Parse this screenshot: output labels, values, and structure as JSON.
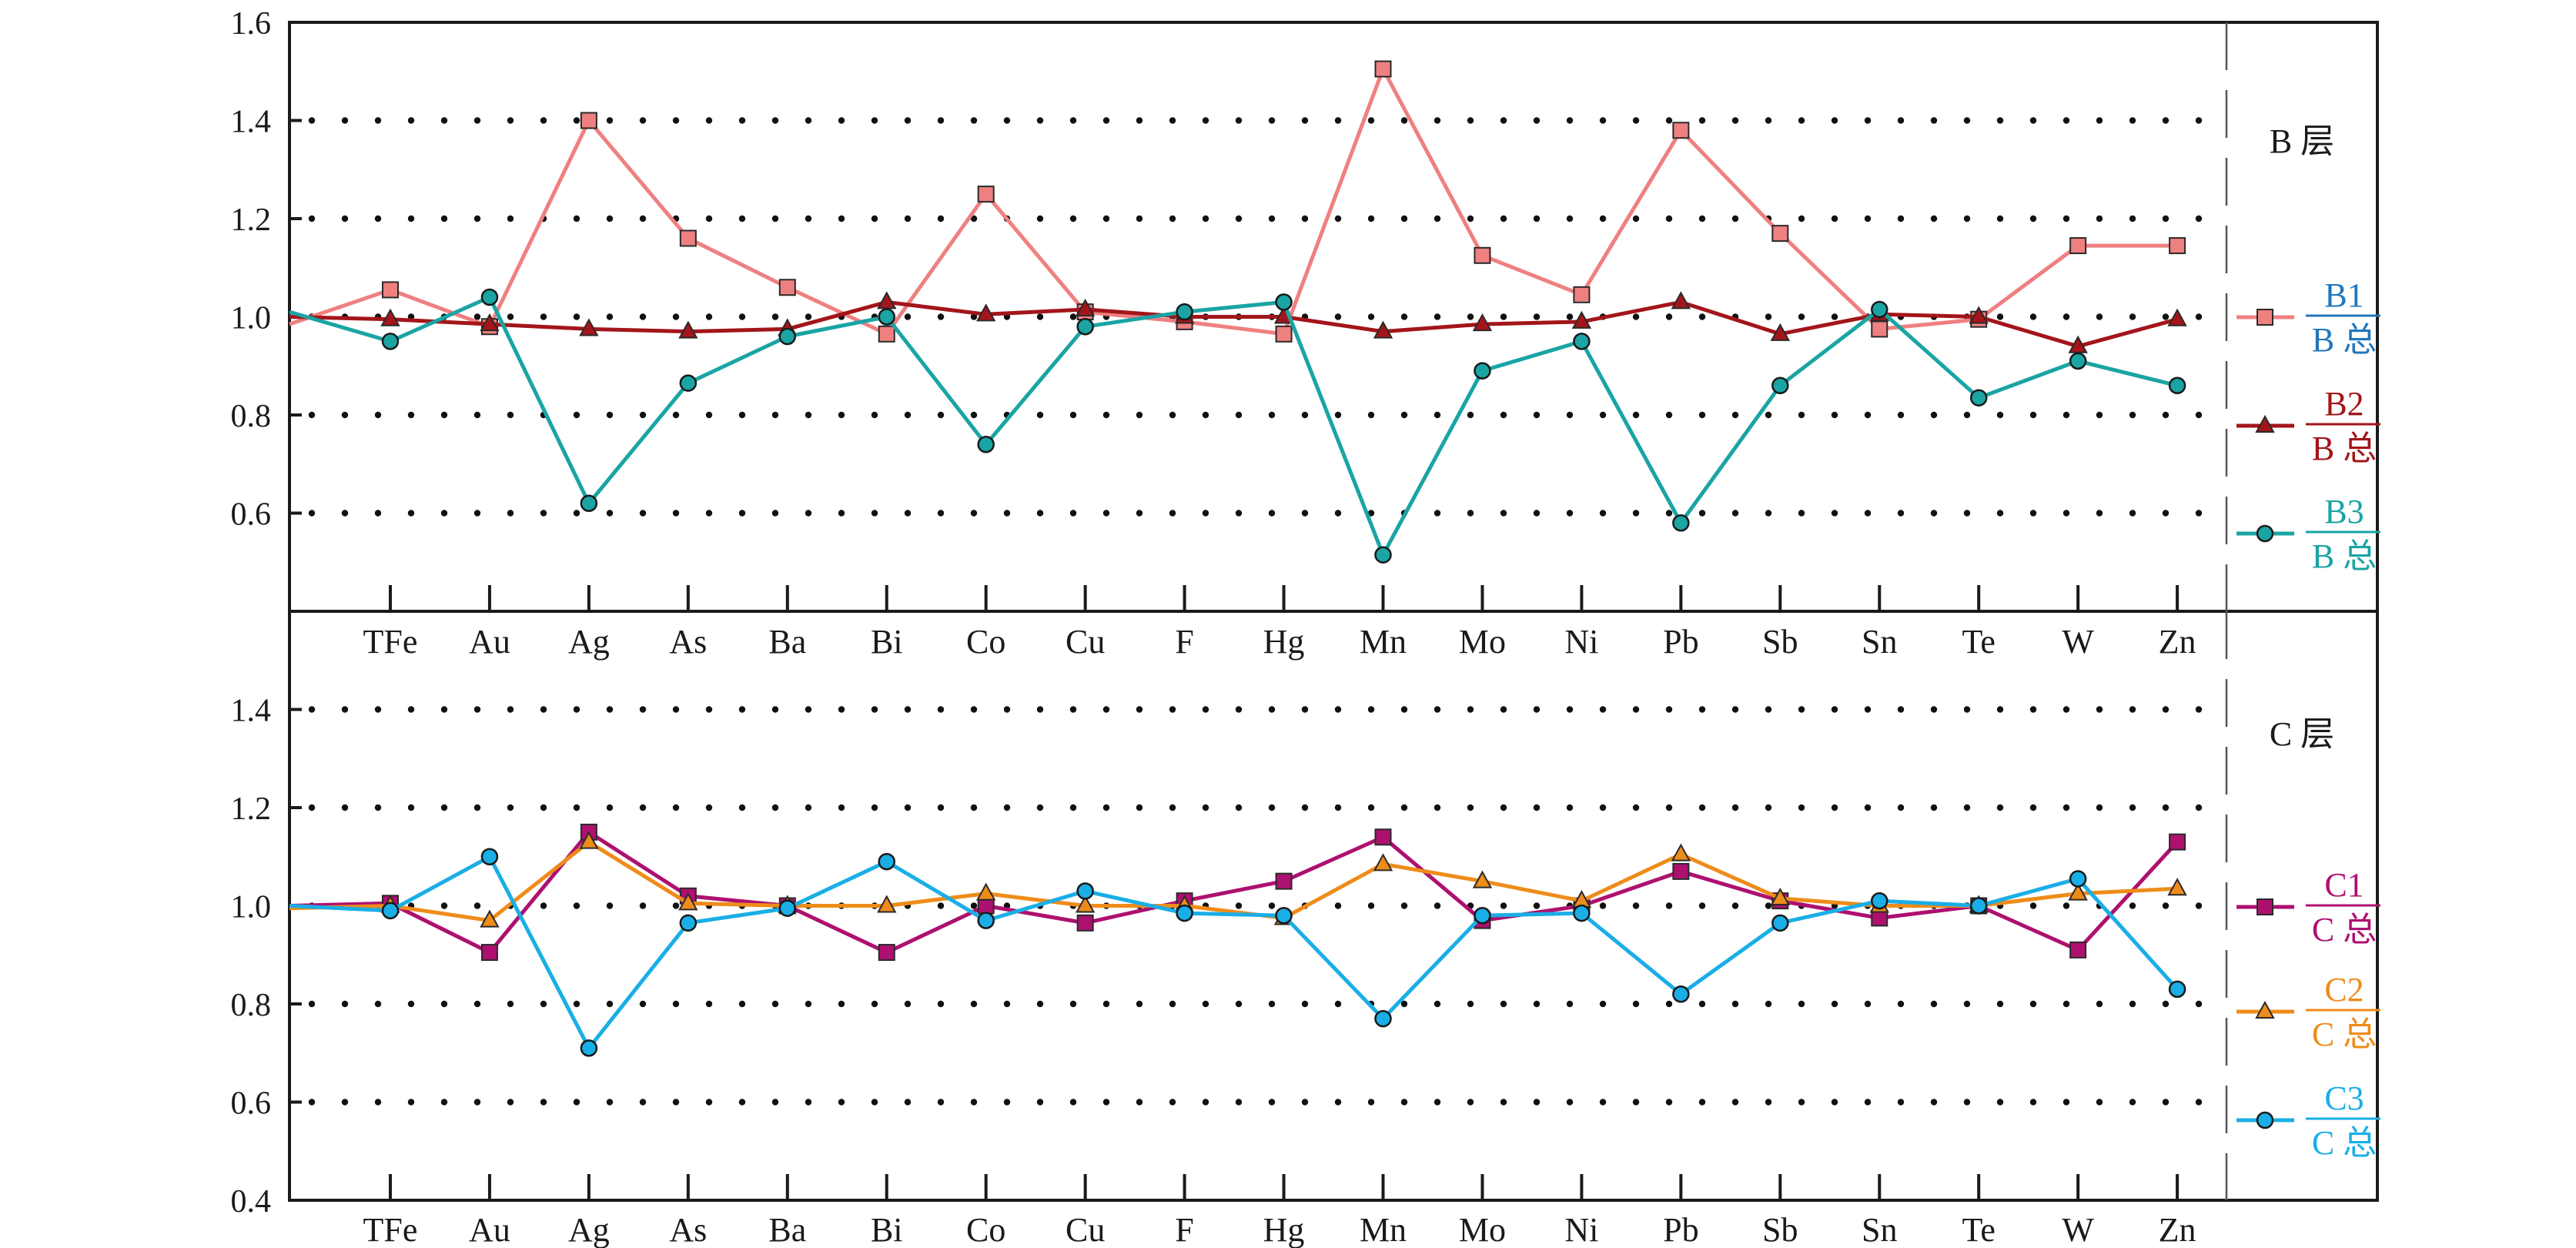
{
  "colors": {
    "B1": "#ef8080",
    "B2": "#a3151a",
    "B3": "#1aa4a4",
    "C1": "#ae1070",
    "C2": "#ee8c1a",
    "C3": "#1aaee6",
    "B1_label": "#2277bb",
    "B3_label": "#1aa4a4",
    "C1_label": "#ae1070",
    "C2_label": "#ee8c1a",
    "C3_label": "#1aaee6",
    "frame": "#1a1a1a",
    "grid_dots": "#111111"
  },
  "chart_data": [
    {
      "type": "line",
      "panel_label": "B 层",
      "categories": [
        "TFe",
        "Au",
        "Ag",
        "As",
        "Ba",
        "Bi",
        "Co",
        "Cu",
        "F",
        "Hg",
        "Mn",
        "Mo",
        "Ni",
        "Pb",
        "Sb",
        "Sn",
        "Te",
        "W",
        "Zn"
      ],
      "ylim": [
        0.4,
        1.6
      ],
      "yticks": [
        "0.6",
        "0.8",
        "1.0",
        "1.2",
        "1.4",
        "1.6"
      ],
      "dotted_grid_at": [
        0.6,
        0.8,
        1.0,
        1.2,
        1.4
      ],
      "series": [
        {
          "name": "B1",
          "denominator": "B 总",
          "marker": "square",
          "start": 0.985,
          "values": [
            1.055,
            0.98,
            1.4,
            1.16,
            1.06,
            0.965,
            1.25,
            1.01,
            0.99,
            0.965,
            1.505,
            1.125,
            1.045,
            1.38,
            1.17,
            0.975,
            0.995,
            1.145,
            1.145
          ]
        },
        {
          "name": "B2",
          "denominator": "B 总",
          "marker": "triangle",
          "start": 1.0,
          "values": [
            0.995,
            0.985,
            0.975,
            0.97,
            0.975,
            1.03,
            1.005,
            1.015,
            1.0,
            1.0,
            0.97,
            0.985,
            0.99,
            1.03,
            0.965,
            1.005,
            1.0,
            0.94,
            0.995
          ]
        },
        {
          "name": "B3",
          "denominator": "B 总",
          "marker": "circle",
          "start": 1.01,
          "values": [
            0.95,
            1.04,
            0.62,
            0.865,
            0.96,
            1.0,
            0.74,
            0.98,
            1.01,
            1.03,
            0.515,
            0.89,
            0.95,
            0.58,
            0.86,
            1.015,
            0.835,
            0.91,
            0.86
          ]
        }
      ]
    },
    {
      "type": "line",
      "panel_label": "C 层",
      "categories": [
        "TFe",
        "Au",
        "Ag",
        "As",
        "Ba",
        "Bi",
        "Co",
        "Cu",
        "F",
        "Hg",
        "Mn",
        "Mo",
        "Ni",
        "Pb",
        "Sb",
        "Sn",
        "Te",
        "W",
        "Zn"
      ],
      "ylim": [
        0.4,
        1.6
      ],
      "yticks": [
        "0.4",
        "0.6",
        "0.8",
        "1.0",
        "1.2",
        "1.4"
      ],
      "dotted_grid_at": [
        0.6,
        0.8,
        1.0,
        1.2,
        1.4
      ],
      "series": [
        {
          "name": "C1",
          "denominator": "C 总",
          "marker": "square",
          "start": 1.0,
          "values": [
            1.005,
            0.905,
            1.15,
            1.02,
            1.0,
            0.905,
            1.0,
            0.965,
            1.01,
            1.05,
            1.14,
            0.97,
            1.0,
            1.07,
            1.01,
            0.975,
            1.0,
            0.91,
            1.13
          ]
        },
        {
          "name": "C2",
          "denominator": "C 总",
          "marker": "triangle",
          "start": 0.995,
          "values": [
            1.0,
            0.97,
            1.13,
            1.005,
            1.0,
            1.0,
            1.025,
            1.0,
            1.0,
            0.975,
            1.085,
            1.05,
            1.01,
            1.105,
            1.015,
            1.0,
            1.0,
            1.025,
            1.035
          ]
        },
        {
          "name": "C3",
          "denominator": "C 总",
          "marker": "circle",
          "start": 1.0,
          "values": [
            0.99,
            1.1,
            0.71,
            0.965,
            0.995,
            1.09,
            0.97,
            1.03,
            0.985,
            0.98,
            0.77,
            0.98,
            0.985,
            0.82,
            0.965,
            1.01,
            1.0,
            1.055,
            0.83
          ]
        }
      ]
    }
  ]
}
